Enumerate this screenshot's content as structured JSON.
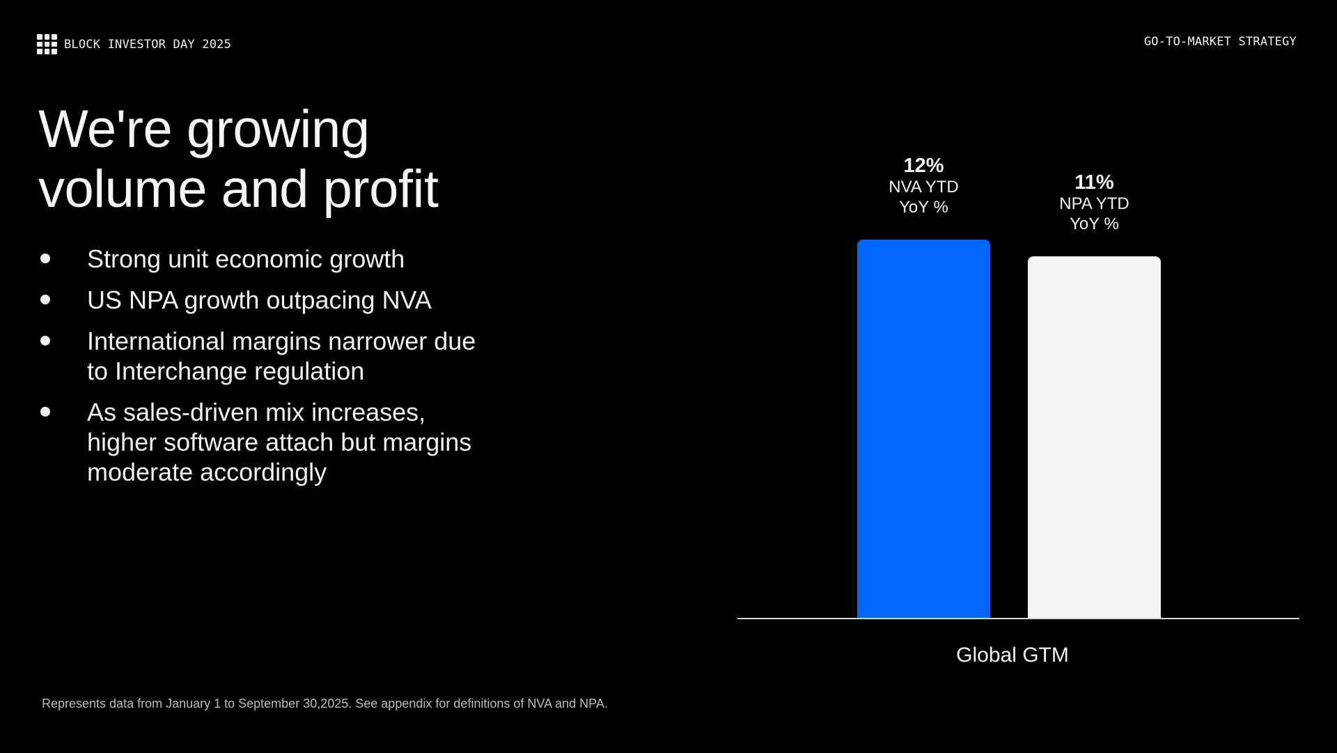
{
  "header": {
    "logo_icon": "block-grid-icon",
    "event": "BLOCK INVESTOR DAY 2025",
    "section": "GO-TO-MARKET STRATEGY"
  },
  "title": {
    "line1": "We're growing",
    "line2": "volume and profit"
  },
  "bullets": [
    {
      "line1": "Strong unit economic growth",
      "line2": ""
    },
    {
      "line1": "US NPA growth outpacing NVA",
      "line2": ""
    },
    {
      "line1": "International margins narrower due",
      "line2": "to Interchange regulation"
    },
    {
      "line1": "As sales-driven mix increases,",
      "line2": "higher software attach but margins",
      "line3": "moderate accordingly"
    }
  ],
  "footnote": "Represents data from January 1 to September 30,2025. See appendix for definitions of NVA and NPA.",
  "chart_data": {
    "type": "bar",
    "title": "",
    "xlabel": "",
    "ylabel": "",
    "categories": [
      "Global GTM"
    ],
    "series": [
      {
        "name": "NVA YTD YoY %",
        "values": [
          12
        ],
        "value_label": "12%",
        "label_line1": "NVA YTD",
        "label_line2": "YoY %",
        "color": "#0066FF"
      },
      {
        "name": "NPA YTD YoY %",
        "values": [
          11
        ],
        "value_label": "11%",
        "label_line1": "NPA YTD",
        "label_line2": "YoY %",
        "color": "#F4F4F4"
      }
    ],
    "grid": false,
    "legend": "none"
  }
}
